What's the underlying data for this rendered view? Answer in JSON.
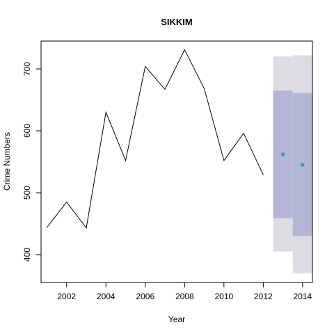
{
  "chart_data": {
    "type": "line",
    "title": "SIKKIM",
    "xlabel": "Year",
    "ylabel": "Crime Numbers",
    "xlim": [
      2000.7,
      2014.5
    ],
    "ylim": [
      355,
      745
    ],
    "xticks": [
      2002,
      2004,
      2006,
      2008,
      2010,
      2012,
      2014
    ],
    "yticks": [
      400,
      500,
      600,
      700
    ],
    "series": [
      {
        "x": [
          2001,
          2002,
          2003,
          2004,
          2005,
          2006,
          2007,
          2008,
          2009,
          2010,
          2011,
          2012
        ],
        "values": [
          444,
          485,
          443,
          630,
          552,
          704,
          667,
          731,
          668,
          552,
          596,
          529
        ]
      }
    ],
    "forecast": {
      "x": [
        2013,
        2014
      ],
      "point": [
        562,
        545
      ],
      "lo80": [
        459,
        430
      ],
      "hi80": [
        665,
        661
      ],
      "lo95": [
        405,
        370
      ],
      "hi95": [
        720,
        722
      ]
    },
    "colors": {
      "line": "#000000",
      "band95": "#dcdce2",
      "band80": "#b3b6d4",
      "point": "#2e8fe0"
    },
    "grid": false
  }
}
